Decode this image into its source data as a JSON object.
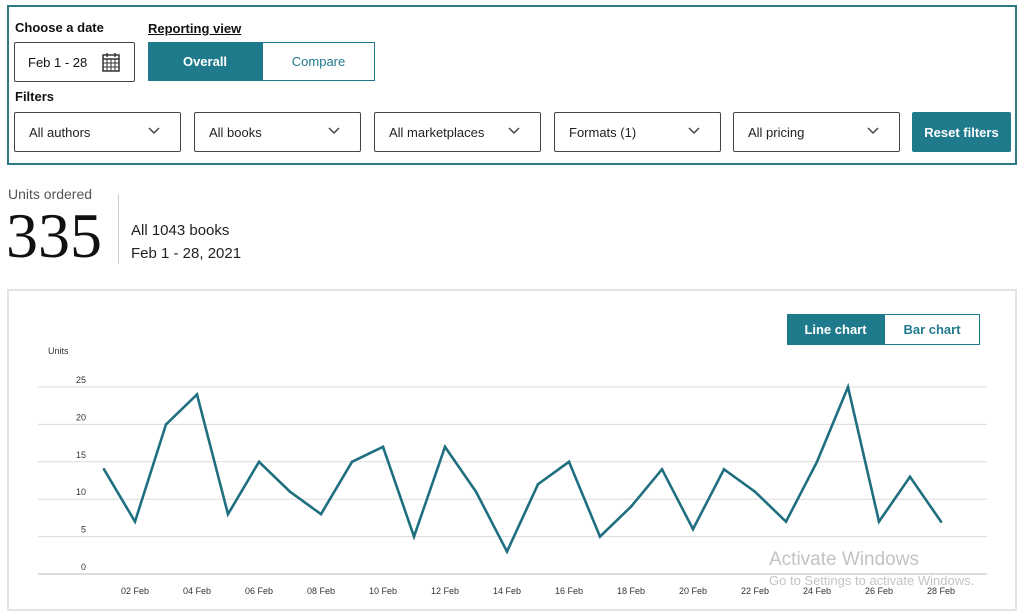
{
  "filters": {
    "date_label": "Choose a date",
    "date_value": "Feb 1 - 28",
    "view_label": "Reporting view",
    "view_overall": "Overall",
    "view_compare": "Compare",
    "filters_label": "Filters",
    "authors": "All authors",
    "books": "All books",
    "marketplaces": "All marketplaces",
    "formats": "Formats (1)",
    "pricing": "All pricing",
    "reset": "Reset filters",
    "accent_color": "#1f7a8c"
  },
  "summary": {
    "units_label": "Units ordered",
    "units_value": "335",
    "scope": "All 1043 books",
    "range": "Feb 1 - 28, 2021"
  },
  "chart_toggle": {
    "line": "Line chart",
    "bar": "Bar chart"
  },
  "chart_data": {
    "type": "line",
    "ylabel": "Units",
    "ylim": [
      0,
      25
    ],
    "yticks": [
      0,
      5,
      10,
      15,
      20,
      25
    ],
    "grid": true,
    "x": [
      "01 Feb",
      "02 Feb",
      "03 Feb",
      "04 Feb",
      "05 Feb",
      "06 Feb",
      "07 Feb",
      "08 Feb",
      "09 Feb",
      "10 Feb",
      "11 Feb",
      "12 Feb",
      "13 Feb",
      "14 Feb",
      "15 Feb",
      "16 Feb",
      "17 Feb",
      "18 Feb",
      "19 Feb",
      "20 Feb",
      "21 Feb",
      "22 Feb",
      "23 Feb",
      "24 Feb",
      "25 Feb",
      "26 Feb",
      "27 Feb",
      "28 Feb"
    ],
    "xtick_labels": [
      "02 Feb",
      "04 Feb",
      "06 Feb",
      "08 Feb",
      "10 Feb",
      "12 Feb",
      "14 Feb",
      "16 Feb",
      "18 Feb",
      "20 Feb",
      "22 Feb",
      "24 Feb",
      "26 Feb",
      "28 Feb"
    ],
    "series": [
      {
        "values": [
          14,
          7,
          20,
          24,
          8,
          15,
          11,
          8,
          15,
          17,
          5,
          17,
          11,
          3,
          12,
          15,
          5,
          9,
          14,
          6,
          14,
          11,
          7,
          15,
          25,
          7,
          13,
          7
        ],
        "color": "#1f6f80"
      }
    ]
  },
  "watermark": {
    "title": "Activate Windows",
    "subtitle": "Go to Settings to activate Windows."
  }
}
